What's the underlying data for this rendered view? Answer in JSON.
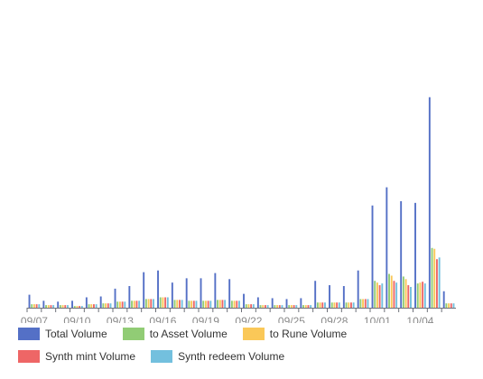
{
  "chart_data": {
    "type": "bar",
    "title": "",
    "xlabel": "",
    "ylabel": "",
    "categories": [
      "09/07",
      "09/08",
      "09/09",
      "09/10",
      "09/11",
      "09/12",
      "09/13",
      "09/14",
      "09/15",
      "09/16",
      "09/17",
      "09/18",
      "09/19",
      "09/20",
      "09/21",
      "09/22",
      "09/23",
      "09/24",
      "09/25",
      "09/26",
      "09/27",
      "09/28",
      "09/29",
      "09/30",
      "10/01",
      "10/02",
      "10/03",
      "10/04",
      "10/05",
      "10/06"
    ],
    "x_tick_labels": [
      "09/07",
      "09/10",
      "09/13",
      "09/16",
      "09/19",
      "09/22",
      "09/25",
      "09/28",
      "10/01",
      "10/04"
    ],
    "ylim": [
      0,
      250
    ],
    "grid": false,
    "legend_position": "bottom",
    "series": [
      {
        "name": "Total Volume",
        "color": "#5470c6",
        "values": [
          15,
          8,
          7,
          8,
          12,
          13,
          22,
          25,
          41,
          43,
          29,
          34,
          34,
          40,
          33,
          16,
          12,
          11,
          10,
          11,
          31,
          26,
          25,
          43,
          118,
          139,
          123,
          121,
          243,
          19
        ]
      },
      {
        "name": "to Asset Volume",
        "color": "#91cc75",
        "values": [
          4,
          3,
          3,
          2,
          4,
          5,
          7,
          8,
          10,
          12,
          9,
          8,
          8,
          9,
          8,
          4,
          3,
          3,
          3,
          3,
          6,
          6,
          6,
          10,
          31,
          39,
          36,
          28,
          69,
          5
        ]
      },
      {
        "name": "to Rune Volume",
        "color": "#fac858",
        "values": [
          4,
          3,
          3,
          2,
          4,
          5,
          7,
          8,
          10,
          12,
          9,
          8,
          8,
          9,
          8,
          4,
          3,
          3,
          3,
          3,
          6,
          6,
          6,
          10,
          29,
          37,
          33,
          29,
          68,
          5
        ]
      },
      {
        "name": "Synth mint Volume",
        "color": "#ee6666",
        "values": [
          4,
          3,
          3,
          2,
          4,
          5,
          7,
          8,
          10,
          12,
          9,
          8,
          8,
          9,
          8,
          4,
          3,
          3,
          3,
          3,
          6,
          6,
          6,
          10,
          26,
          31,
          26,
          30,
          56,
          5
        ]
      },
      {
        "name": "Synth redeem Volume",
        "color": "#73c0de",
        "values": [
          4,
          3,
          3,
          2,
          4,
          5,
          7,
          8,
          10,
          12,
          9,
          8,
          8,
          9,
          8,
          4,
          3,
          3,
          3,
          3,
          6,
          6,
          6,
          10,
          28,
          29,
          24,
          28,
          58,
          5
        ]
      }
    ]
  }
}
